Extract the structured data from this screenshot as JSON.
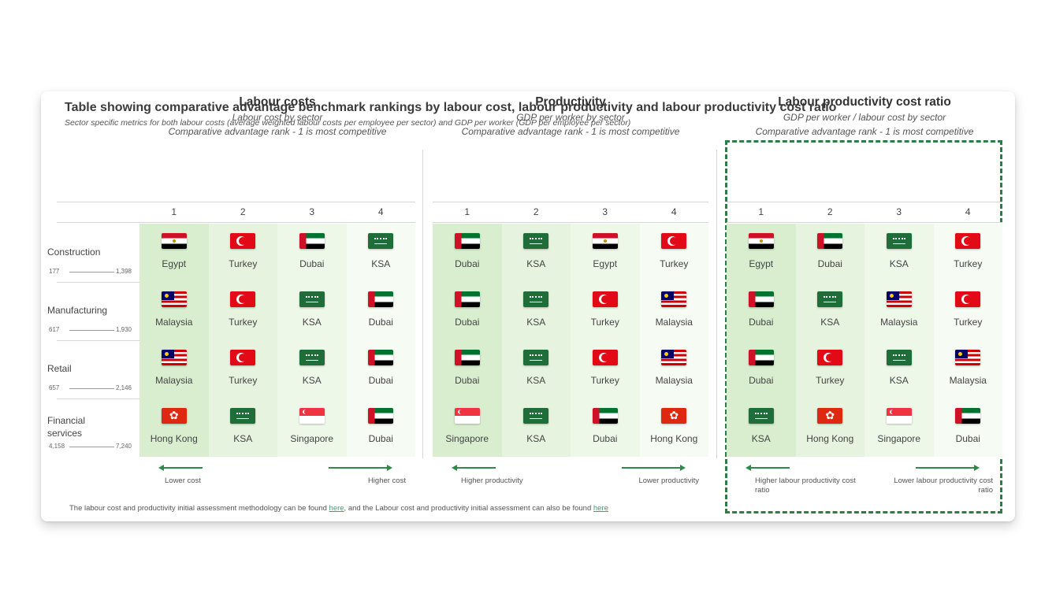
{
  "title": "Table showing comparative advantage benchmark rankings by labour cost, labour productivity and labour productivity cost ratio",
  "subtitle": "Sector specific metrics for both labour costs (average weighted labour costs per employee per sector) and GDP per worker (GDP per employee per sector)",
  "ranks": [
    "1",
    "2",
    "3",
    "4"
  ],
  "rows": [
    {
      "label": "Construction",
      "min": "177",
      "max": "1,398"
    },
    {
      "label": "Manufacturing",
      "min": "617",
      "max": "1,930"
    },
    {
      "label": "Retail",
      "min": "657",
      "max": "2,146"
    },
    {
      "label": "Financial services",
      "min": "4,158",
      "max": "7,240"
    }
  ],
  "panels": [
    {
      "heading": "Labour costs",
      "sub1": "Labour cost by sector",
      "sub2": "Comparative advantage rank - 1 is most competitive",
      "arrow_left": "Lower cost",
      "arrow_right": "Higher cost",
      "grid": [
        [
          {
            "country": "Egypt",
            "flag": "egypt"
          },
          {
            "country": "Turkey",
            "flag": "turkey"
          },
          {
            "country": "Dubai",
            "flag": "dubai"
          },
          {
            "country": "KSA",
            "flag": "ksa"
          }
        ],
        [
          {
            "country": "Malaysia",
            "flag": "malaysia"
          },
          {
            "country": "Turkey",
            "flag": "turkey"
          },
          {
            "country": "KSA",
            "flag": "ksa"
          },
          {
            "country": "Dubai",
            "flag": "dubai"
          }
        ],
        [
          {
            "country": "Malaysia",
            "flag": "malaysia"
          },
          {
            "country": "Turkey",
            "flag": "turkey"
          },
          {
            "country": "KSA",
            "flag": "ksa"
          },
          {
            "country": "Dubai",
            "flag": "dubai"
          }
        ],
        [
          {
            "country": "Hong Kong",
            "flag": "hongkong"
          },
          {
            "country": "KSA",
            "flag": "ksa"
          },
          {
            "country": "Singapore",
            "flag": "singapore"
          },
          {
            "country": "Dubai",
            "flag": "dubai"
          }
        ]
      ]
    },
    {
      "heading": "Productivity",
      "sub1": "GDP per worker by sector",
      "sub2": "Comparative advantage rank - 1 is most competitive",
      "arrow_left": "Higher productivity",
      "arrow_right": "Lower productivity",
      "grid": [
        [
          {
            "country": "Dubai",
            "flag": "dubai"
          },
          {
            "country": "KSA",
            "flag": "ksa"
          },
          {
            "country": "Egypt",
            "flag": "egypt"
          },
          {
            "country": "Turkey",
            "flag": "turkey"
          }
        ],
        [
          {
            "country": "Dubai",
            "flag": "dubai"
          },
          {
            "country": "KSA",
            "flag": "ksa"
          },
          {
            "country": "Turkey",
            "flag": "turkey"
          },
          {
            "country": "Malaysia",
            "flag": "malaysia"
          }
        ],
        [
          {
            "country": "Dubai",
            "flag": "dubai"
          },
          {
            "country": "KSA",
            "flag": "ksa"
          },
          {
            "country": "Turkey",
            "flag": "turkey"
          },
          {
            "country": "Malaysia",
            "flag": "malaysia"
          }
        ],
        [
          {
            "country": "Singapore",
            "flag": "singapore"
          },
          {
            "country": "KSA",
            "flag": "ksa"
          },
          {
            "country": "Dubai",
            "flag": "dubai"
          },
          {
            "country": "Hong Kong",
            "flag": "hongkong"
          }
        ]
      ]
    },
    {
      "heading": "Labour productivity cost ratio",
      "sub1": "GDP per worker / labour cost by sector",
      "sub2": "Comparative advantage rank - 1 is most competitive",
      "arrow_left": "Higher labour productivity cost ratio",
      "arrow_right": "Lower labour productivity cost ratio",
      "grid": [
        [
          {
            "country": "Egypt",
            "flag": "egypt"
          },
          {
            "country": "Dubai",
            "flag": "dubai"
          },
          {
            "country": "KSA",
            "flag": "ksa"
          },
          {
            "country": "Turkey",
            "flag": "turkey"
          }
        ],
        [
          {
            "country": "Dubai",
            "flag": "dubai"
          },
          {
            "country": "KSA",
            "flag": "ksa"
          },
          {
            "country": "Malaysia",
            "flag": "malaysia"
          },
          {
            "country": "Turkey",
            "flag": "turkey"
          }
        ],
        [
          {
            "country": "Dubai",
            "flag": "dubai"
          },
          {
            "country": "Turkey",
            "flag": "turkey"
          },
          {
            "country": "KSA",
            "flag": "ksa"
          },
          {
            "country": "Malaysia",
            "flag": "malaysia"
          }
        ],
        [
          {
            "country": "KSA",
            "flag": "ksa"
          },
          {
            "country": "Hong Kong",
            "flag": "hongkong"
          },
          {
            "country": "Singapore",
            "flag": "singapore"
          },
          {
            "country": "Dubai",
            "flag": "dubai"
          }
        ]
      ]
    }
  ],
  "rank_colors": [
    "#d8eecf",
    "#e6f4df",
    "#eef8e9",
    "#f6fbf3"
  ],
  "accent_color": "#2e7d44",
  "footer": {
    "text_before": "The labour cost and productivity initial assessment methodology can be found ",
    "link1": "here",
    "text_middle": ", and the Labour cost and productivity initial assessment can also be found ",
    "link2": "here"
  }
}
